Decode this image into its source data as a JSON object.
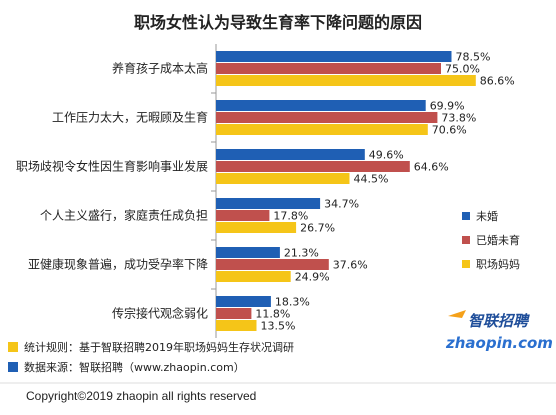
{
  "colors": {
    "unmarried": "#1f5fb4",
    "married_no_child": "#c0504d",
    "working_mom": "#f5c518",
    "axis": "#9a9a9a",
    "text": "#222222"
  },
  "chart_data": {
    "type": "bar",
    "orientation": "horizontal",
    "title": "职场女性认为导致生育率下降问题的原因",
    "categories": [
      "养育孩子成本太高",
      "工作压力太大，无暇顾及生育",
      "职场歧视令女性因生育影响事业发展",
      "个人主义盛行，家庭责任成负担",
      "亚健康现象普遍，成功受孕率下降",
      "传宗接代观念弱化"
    ],
    "series": [
      {
        "name": "未婚",
        "values": [
          78.5,
          69.9,
          49.6,
          34.7,
          21.3,
          18.3
        ],
        "labels": [
          "78.5%",
          "69.9%",
          "49.6%",
          "34.7%",
          "21.3%",
          "18.3%"
        ]
      },
      {
        "name": "已婚未育",
        "values": [
          75.0,
          73.8,
          64.6,
          17.8,
          37.6,
          11.8
        ],
        "labels": [
          "75.0%",
          "73.8%",
          "64.6%",
          "17.8%",
          "37.6%",
          "11.8%"
        ]
      },
      {
        "name": "职场妈妈",
        "values": [
          86.6,
          70.6,
          44.5,
          26.7,
          24.9,
          13.5
        ],
        "labels": [
          "86.6%",
          "70.6%",
          "44.5%",
          "26.7%",
          "24.9%",
          "13.5%"
        ]
      }
    ],
    "xlim": [
      0,
      100
    ],
    "legend_position": "right",
    "grid": false
  },
  "notes": {
    "rule": "统计规则：基于智联招聘2019年职场妈妈生存状况调研",
    "source": "数据来源：智联招聘（www.zhaopin.com）"
  },
  "copyright": "Copyright©2019 zhaopin all rights reserved",
  "logo": {
    "cn": "智联招聘",
    "en": "zhaopin.com"
  }
}
